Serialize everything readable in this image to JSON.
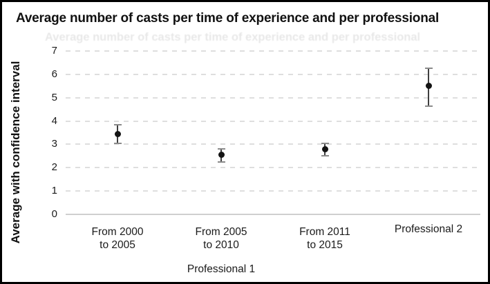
{
  "figure": {
    "border_color": "#000000",
    "background": "#ffffff"
  },
  "chart_data": {
    "type": "scatter",
    "title": "Average number of casts per time of experience and per professional",
    "ylabel": "Average with confidence interval",
    "xlabel": "",
    "ylim": [
      0,
      7
    ],
    "yticks": [
      "0",
      "1",
      "2",
      "3",
      "4",
      "5",
      "6",
      "7"
    ],
    "grid": "horizontal-dashed-light-gray",
    "legend": "none",
    "group_label": "Professional 1",
    "group_label_span": "first three categories",
    "categories": [
      "From 2000 to 2005",
      "From 2005 to 2010",
      "From 2011 to 2015",
      "Professional 2"
    ],
    "points": [
      {
        "category": "From 2000 to 2005",
        "label_lines": [
          "From 2000",
          "to 2005"
        ],
        "mean": 3.45,
        "ci_low": 3.05,
        "ci_high": 3.85
      },
      {
        "category": "From 2005 to 2010",
        "label_lines": [
          "From 2005",
          "to 2010"
        ],
        "mean": 2.55,
        "ci_low": 2.25,
        "ci_high": 2.8
      },
      {
        "category": "From 2011 to 2015",
        "label_lines": [
          "From 2011",
          "to 2015"
        ],
        "mean": 2.8,
        "ci_low": 2.5,
        "ci_high": 3.05
      },
      {
        "category": "Professional 2",
        "label_lines": [
          "Professional 2"
        ],
        "mean": 5.5,
        "ci_low": 4.65,
        "ci_high": 6.25
      }
    ],
    "colors": {
      "marker": "#141414",
      "whisker": "#3f3f3f",
      "whisker_cap": "#8a8a8a",
      "gridline": "#dedede",
      "baseline": "#cfcfcf",
      "text": "#1a1a1a"
    }
  }
}
